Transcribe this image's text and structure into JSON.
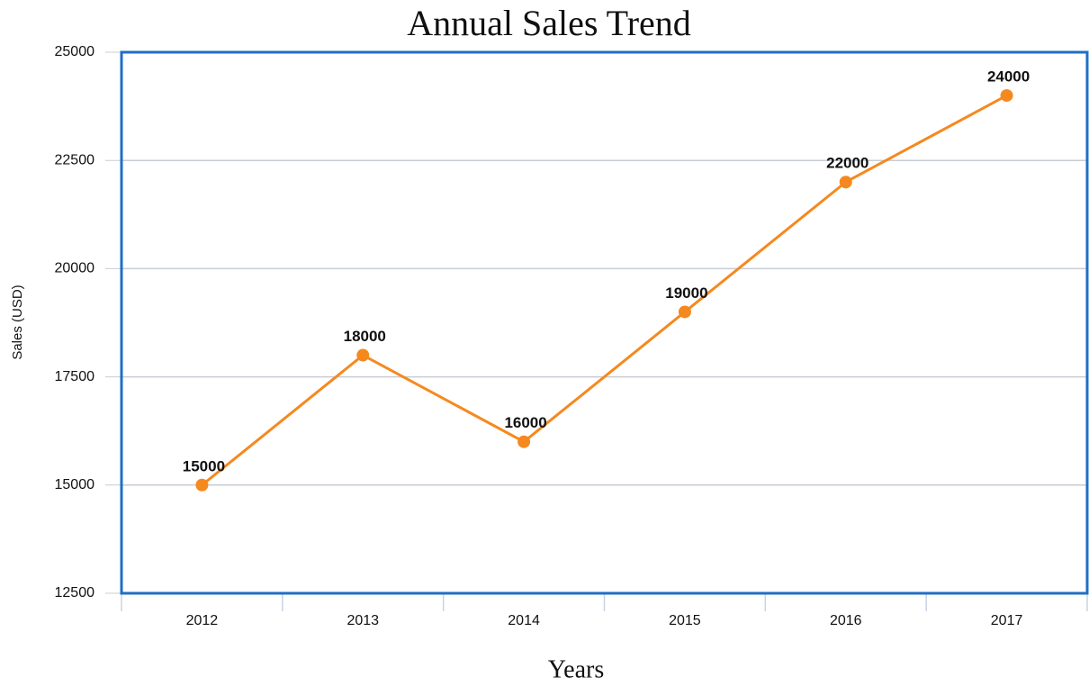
{
  "chart_data": {
    "type": "line",
    "title": "Annual Sales Trend",
    "x_label": "Years",
    "y_label": "Sales (USD)",
    "categories": [
      "2012",
      "2013",
      "2014",
      "2015",
      "2016",
      "2017"
    ],
    "series": [
      {
        "name": "Sales",
        "color": "#f5891f",
        "values": [
          15000,
          18000,
          16000,
          19000,
          22000,
          24000
        ]
      }
    ],
    "ylim": [
      12500,
      25000
    ],
    "yticks": [
      12500,
      15000,
      17500,
      20000,
      22500,
      25000
    ],
    "grid": true,
    "data_labels": true,
    "frame_color": "#1f6fc5"
  }
}
